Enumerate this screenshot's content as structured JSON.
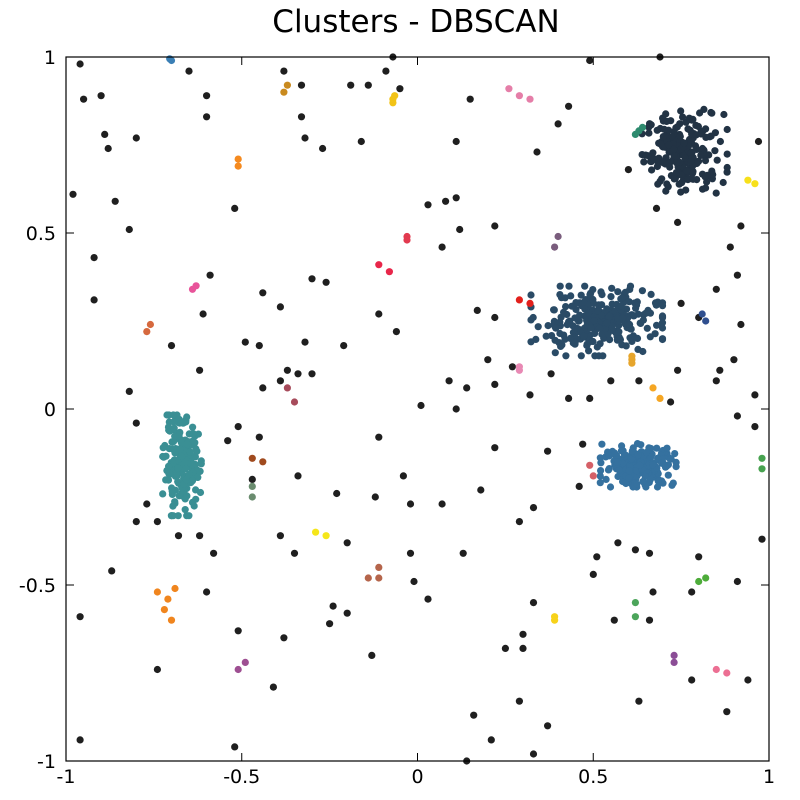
{
  "chart_data": {
    "type": "scatter",
    "title": "Clusters - DBSCAN",
    "xlabel": "",
    "ylabel": "",
    "xlim": [
      -1,
      1
    ],
    "ylim": [
      -1,
      1
    ],
    "x_ticks": [
      -1,
      -0.5,
      0,
      0.5,
      1
    ],
    "y_ticks": [
      -1,
      -0.5,
      0,
      0.5,
      1
    ],
    "x_tick_labels": [
      "-1",
      "-0.5",
      "0",
      "0.5",
      "1"
    ],
    "y_tick_labels": [
      "-1",
      "-0.5",
      "0",
      "0.5",
      "1"
    ],
    "grid": false,
    "legend": "none",
    "noise": {
      "color": "#1f1f1f",
      "points": [
        [
          -0.96,
          0.98
        ],
        [
          -0.95,
          0.88
        ],
        [
          -0.9,
          0.89
        ],
        [
          -0.89,
          0.78
        ],
        [
          -0.88,
          0.74
        ],
        [
          -0.8,
          0.77
        ],
        [
          -0.65,
          0.96
        ],
        [
          -0.6,
          0.89
        ],
        [
          -0.6,
          0.83
        ],
        [
          -0.38,
          0.96
        ],
        [
          -0.33,
          0.92
        ],
        [
          -0.19,
          0.92
        ],
        [
          -0.14,
          0.92
        ],
        [
          -0.09,
          0.96
        ],
        [
          -0.07,
          1.0
        ],
        [
          -0.05,
          0.91
        ],
        [
          0.15,
          0.88
        ],
        [
          0.49,
          0.99
        ],
        [
          0.69,
          1.0
        ],
        [
          -0.98,
          0.61
        ],
        [
          -0.86,
          0.59
        ],
        [
          -0.82,
          0.51
        ],
        [
          -0.92,
          0.43
        ],
        [
          -0.92,
          0.31
        ],
        [
          -0.52,
          0.57
        ],
        [
          -0.32,
          0.77
        ],
        [
          -0.27,
          0.74
        ],
        [
          -0.16,
          0.76
        ],
        [
          -0.33,
          0.83
        ],
        [
          0.11,
          0.76
        ],
        [
          0.08,
          0.59
        ],
        [
          0.11,
          0.6
        ],
        [
          0.03,
          0.58
        ],
        [
          0.07,
          0.46
        ],
        [
          0.22,
          0.52
        ],
        [
          0.34,
          0.73
        ],
        [
          0.4,
          0.81
        ],
        [
          0.43,
          0.86
        ],
        [
          0.6,
          0.68
        ],
        [
          0.68,
          0.57
        ],
        [
          0.74,
          0.53
        ],
        [
          0.92,
          0.52
        ],
        [
          0.97,
          0.76
        ],
        [
          0.89,
          0.46
        ],
        [
          0.91,
          0.38
        ],
        [
          0.85,
          0.34
        ],
        [
          0.8,
          0.26
        ],
        [
          0.75,
          0.3
        ],
        [
          0.92,
          0.24
        ],
        [
          0.9,
          0.14
        ],
        [
          0.86,
          0.11
        ],
        [
          0.85,
          0.08
        ],
        [
          0.96,
          0.04
        ],
        [
          -0.59,
          0.38
        ],
        [
          -0.61,
          0.27
        ],
        [
          -0.7,
          0.18
        ],
        [
          -0.62,
          0.11
        ],
        [
          -0.44,
          0.33
        ],
        [
          -0.39,
          0.29
        ],
        [
          -0.3,
          0.37
        ],
        [
          -0.26,
          0.36
        ],
        [
          -0.21,
          0.18
        ],
        [
          -0.32,
          0.19
        ],
        [
          -0.37,
          0.11
        ],
        [
          -0.34,
          0.1
        ],
        [
          -0.39,
          0.08
        ],
        [
          -0.3,
          0.1
        ],
        [
          -0.45,
          0.18
        ],
        [
          -0.49,
          0.19
        ],
        [
          -0.44,
          0.06
        ],
        [
          -0.11,
          0.27
        ],
        [
          -0.06,
          0.22
        ],
        [
          0.12,
          0.51
        ],
        [
          0.17,
          0.28
        ],
        [
          0.22,
          0.26
        ],
        [
          0.01,
          0.01
        ],
        [
          0.09,
          0.08
        ],
        [
          0.14,
          0.06
        ],
        [
          0.11,
          0.0
        ],
        [
          0.2,
          0.14
        ],
        [
          0.22,
          0.07
        ],
        [
          0.27,
          0.12
        ],
        [
          0.32,
          0.04
        ],
        [
          0.38,
          0.1
        ],
        [
          0.43,
          0.03
        ],
        [
          0.49,
          0.03
        ],
        [
          0.55,
          0.08
        ],
        [
          0.63,
          0.08
        ],
        [
          0.72,
          0.02
        ],
        [
          0.74,
          0.11
        ],
        [
          -0.82,
          0.05
        ],
        [
          -0.8,
          -0.04
        ],
        [
          -0.8,
          -0.32
        ],
        [
          -0.74,
          -0.32
        ],
        [
          -0.77,
          -0.27
        ],
        [
          -0.68,
          -0.36
        ],
        [
          -0.62,
          -0.36
        ],
        [
          -0.58,
          -0.41
        ],
        [
          -0.6,
          -0.52
        ],
        [
          -0.54,
          -0.09
        ],
        [
          -0.51,
          -0.05
        ],
        [
          -0.47,
          -0.2
        ],
        [
          -0.45,
          -0.08
        ],
        [
          -0.34,
          -0.19
        ],
        [
          -0.39,
          -0.36
        ],
        [
          -0.35,
          -0.41
        ],
        [
          -0.23,
          -0.24
        ],
        [
          -0.2,
          -0.38
        ],
        [
          -0.24,
          -0.56
        ],
        [
          -0.25,
          -0.61
        ],
        [
          -0.2,
          -0.58
        ],
        [
          -0.12,
          -0.25
        ],
        [
          -0.11,
          -0.08
        ],
        [
          -0.04,
          -0.19
        ],
        [
          -0.02,
          -0.27
        ],
        [
          0.07,
          -0.27
        ],
        [
          0.18,
          -0.23
        ],
        [
          0.22,
          -0.11
        ],
        [
          0.29,
          -0.32
        ],
        [
          0.33,
          -0.28
        ],
        [
          0.37,
          -0.12
        ],
        [
          0.46,
          -0.22
        ],
        [
          0.47,
          -0.1
        ],
        [
          0.51,
          -0.42
        ],
        [
          0.5,
          -0.47
        ],
        [
          0.57,
          -0.38
        ],
        [
          0.62,
          -0.4
        ],
        [
          0.66,
          -0.41
        ],
        [
          0.67,
          -0.52
        ],
        [
          0.78,
          -0.52
        ],
        [
          0.8,
          -0.42
        ],
        [
          0.91,
          -0.49
        ],
        [
          0.98,
          -0.37
        ],
        [
          0.96,
          -0.05
        ],
        [
          0.91,
          -0.02
        ],
        [
          -0.96,
          -0.59
        ],
        [
          -0.87,
          -0.46
        ],
        [
          -0.74,
          -0.74
        ],
        [
          -0.51,
          -0.63
        ],
        [
          -0.38,
          -0.65
        ],
        [
          -0.41,
          -0.79
        ],
        [
          -0.13,
          -0.7
        ],
        [
          -0.02,
          -0.41
        ],
        [
          -0.01,
          -0.49
        ],
        [
          0.03,
          -0.54
        ],
        [
          0.13,
          -0.41
        ],
        [
          0.25,
          -0.68
        ],
        [
          0.3,
          -0.64
        ],
        [
          0.3,
          -0.68
        ],
        [
          0.29,
          -0.83
        ],
        [
          0.33,
          -0.55
        ],
        [
          0.37,
          -0.9
        ],
        [
          0.33,
          -0.98
        ],
        [
          0.21,
          -0.94
        ],
        [
          0.16,
          -0.87
        ],
        [
          0.14,
          -1.0
        ],
        [
          0.56,
          -0.6
        ],
        [
          0.66,
          -0.6
        ],
        [
          0.63,
          -0.83
        ],
        [
          0.78,
          -0.77
        ],
        [
          0.88,
          -0.86
        ],
        [
          0.94,
          -0.77
        ],
        [
          -0.96,
          -0.94
        ],
        [
          -0.52,
          -0.96
        ]
      ]
    },
    "clusters": [
      {
        "color": "#223344",
        "center": [
          0.76,
          0.73
        ],
        "spread": [
          0.055,
          0.055
        ],
        "count": 210
      },
      {
        "color": "#2a4b66",
        "center": [
          0.51,
          0.25
        ],
        "spread": [
          0.085,
          0.045
        ],
        "count": 280
      },
      {
        "color": "#3a8f94",
        "center": [
          -0.67,
          -0.16
        ],
        "spread": [
          0.025,
          0.065
        ],
        "count": 190
      },
      {
        "color": "#35719f",
        "center": [
          0.63,
          -0.16
        ],
        "spread": [
          0.05,
          0.028
        ],
        "count": 220
      }
    ],
    "small_clusters": [
      {
        "color": "#2e8b6f",
        "points": [
          [
            0.63,
            0.79
          ],
          [
            0.64,
            0.8
          ],
          [
            0.62,
            0.78
          ]
        ]
      },
      {
        "color": "#2f4f8f",
        "points": [
          [
            0.82,
            0.25
          ],
          [
            0.81,
            0.27
          ]
        ]
      },
      {
        "color": "#3a7fb5",
        "points": [
          [
            -0.7,
            0.99
          ],
          [
            -0.705,
            0.995
          ]
        ]
      },
      {
        "color": "#c98a1e",
        "points": [
          [
            -0.38,
            0.9
          ],
          [
            -0.37,
            0.92
          ]
        ]
      },
      {
        "color": "#f2c316",
        "points": [
          [
            -0.07,
            0.87
          ],
          [
            -0.07,
            0.88
          ],
          [
            -0.065,
            0.89
          ]
        ]
      },
      {
        "color": "#f58a1f",
        "points": [
          [
            -0.51,
            0.71
          ],
          [
            -0.51,
            0.69
          ]
        ]
      },
      {
        "color": "#e57ea8",
        "points": [
          [
            0.26,
            0.91
          ],
          [
            0.29,
            0.89
          ],
          [
            0.32,
            0.88
          ]
        ]
      },
      {
        "color": "#f7e01a",
        "points": [
          [
            0.94,
            0.65
          ],
          [
            0.96,
            0.64
          ]
        ]
      },
      {
        "color": "#e23a4f",
        "points": [
          [
            -0.03,
            0.49
          ],
          [
            -0.03,
            0.48
          ]
        ]
      },
      {
        "color": "#e8264a",
        "points": [
          [
            -0.11,
            0.41
          ],
          [
            -0.08,
            0.39
          ]
        ]
      },
      {
        "color": "#7a5d7d",
        "points": [
          [
            0.4,
            0.49
          ],
          [
            0.39,
            0.46
          ]
        ]
      },
      {
        "color": "#e8549a",
        "points": [
          [
            -0.64,
            0.34
          ],
          [
            -0.63,
            0.35
          ]
        ]
      },
      {
        "color": "#d6693e",
        "points": [
          [
            -0.77,
            0.22
          ],
          [
            -0.76,
            0.24
          ]
        ]
      },
      {
        "color": "#e2201c",
        "points": [
          [
            0.29,
            0.31
          ],
          [
            0.32,
            0.3
          ]
        ]
      },
      {
        "color": "#e6a52c",
        "points": [
          [
            0.61,
            0.14
          ],
          [
            0.61,
            0.13
          ],
          [
            0.61,
            0.15
          ]
        ]
      },
      {
        "color": "#e889b4",
        "points": [
          [
            0.29,
            0.11
          ],
          [
            0.29,
            0.12
          ]
        ]
      },
      {
        "color": "#f5a623",
        "points": [
          [
            0.67,
            0.06
          ],
          [
            0.69,
            0.03
          ]
        ]
      },
      {
        "color": "#a74b5b",
        "points": [
          [
            -0.37,
            0.06
          ],
          [
            -0.35,
            0.02
          ]
        ]
      },
      {
        "color": "#a04a1e",
        "points": [
          [
            -0.47,
            -0.14
          ],
          [
            -0.44,
            -0.15
          ]
        ]
      },
      {
        "color": "#6a8c6f",
        "points": [
          [
            -0.47,
            -0.22
          ],
          [
            -0.47,
            -0.25
          ]
        ]
      },
      {
        "color": "#d56067",
        "points": [
          [
            0.49,
            -0.16
          ],
          [
            0.5,
            -0.19
          ]
        ]
      },
      {
        "color": "#47a24f",
        "points": [
          [
            0.98,
            -0.14
          ],
          [
            0.98,
            -0.17
          ]
        ]
      },
      {
        "color": "#f5e61a",
        "points": [
          [
            -0.29,
            -0.35
          ],
          [
            -0.26,
            -0.36
          ]
        ]
      },
      {
        "color": "#b5654b",
        "points": [
          [
            -0.14,
            -0.48
          ],
          [
            -0.11,
            -0.45
          ],
          [
            -0.11,
            -0.48
          ]
        ]
      },
      {
        "color": "#4dac3a",
        "points": [
          [
            0.8,
            -0.49
          ],
          [
            0.82,
            -0.48
          ]
        ]
      },
      {
        "color": "#f0851e",
        "points": [
          [
            -0.74,
            -0.52
          ],
          [
            -0.71,
            -0.54
          ],
          [
            -0.69,
            -0.51
          ],
          [
            -0.72,
            -0.57
          ],
          [
            -0.7,
            -0.6
          ]
        ]
      },
      {
        "color": "#f7d21a",
        "points": [
          [
            0.39,
            -0.59
          ],
          [
            0.39,
            -0.6
          ]
        ]
      },
      {
        "color": "#4ca55b",
        "points": [
          [
            0.62,
            -0.55
          ],
          [
            0.62,
            -0.59
          ]
        ]
      },
      {
        "color": "#9e4f92",
        "points": [
          [
            -0.51,
            -0.74
          ],
          [
            -0.49,
            -0.72
          ]
        ]
      },
      {
        "color": "#8b4d96",
        "points": [
          [
            0.73,
            -0.7
          ],
          [
            0.73,
            -0.72
          ]
        ]
      },
      {
        "color": "#ec6f93",
        "points": [
          [
            0.85,
            -0.74
          ],
          [
            0.88,
            -0.75
          ]
        ]
      }
    ]
  }
}
